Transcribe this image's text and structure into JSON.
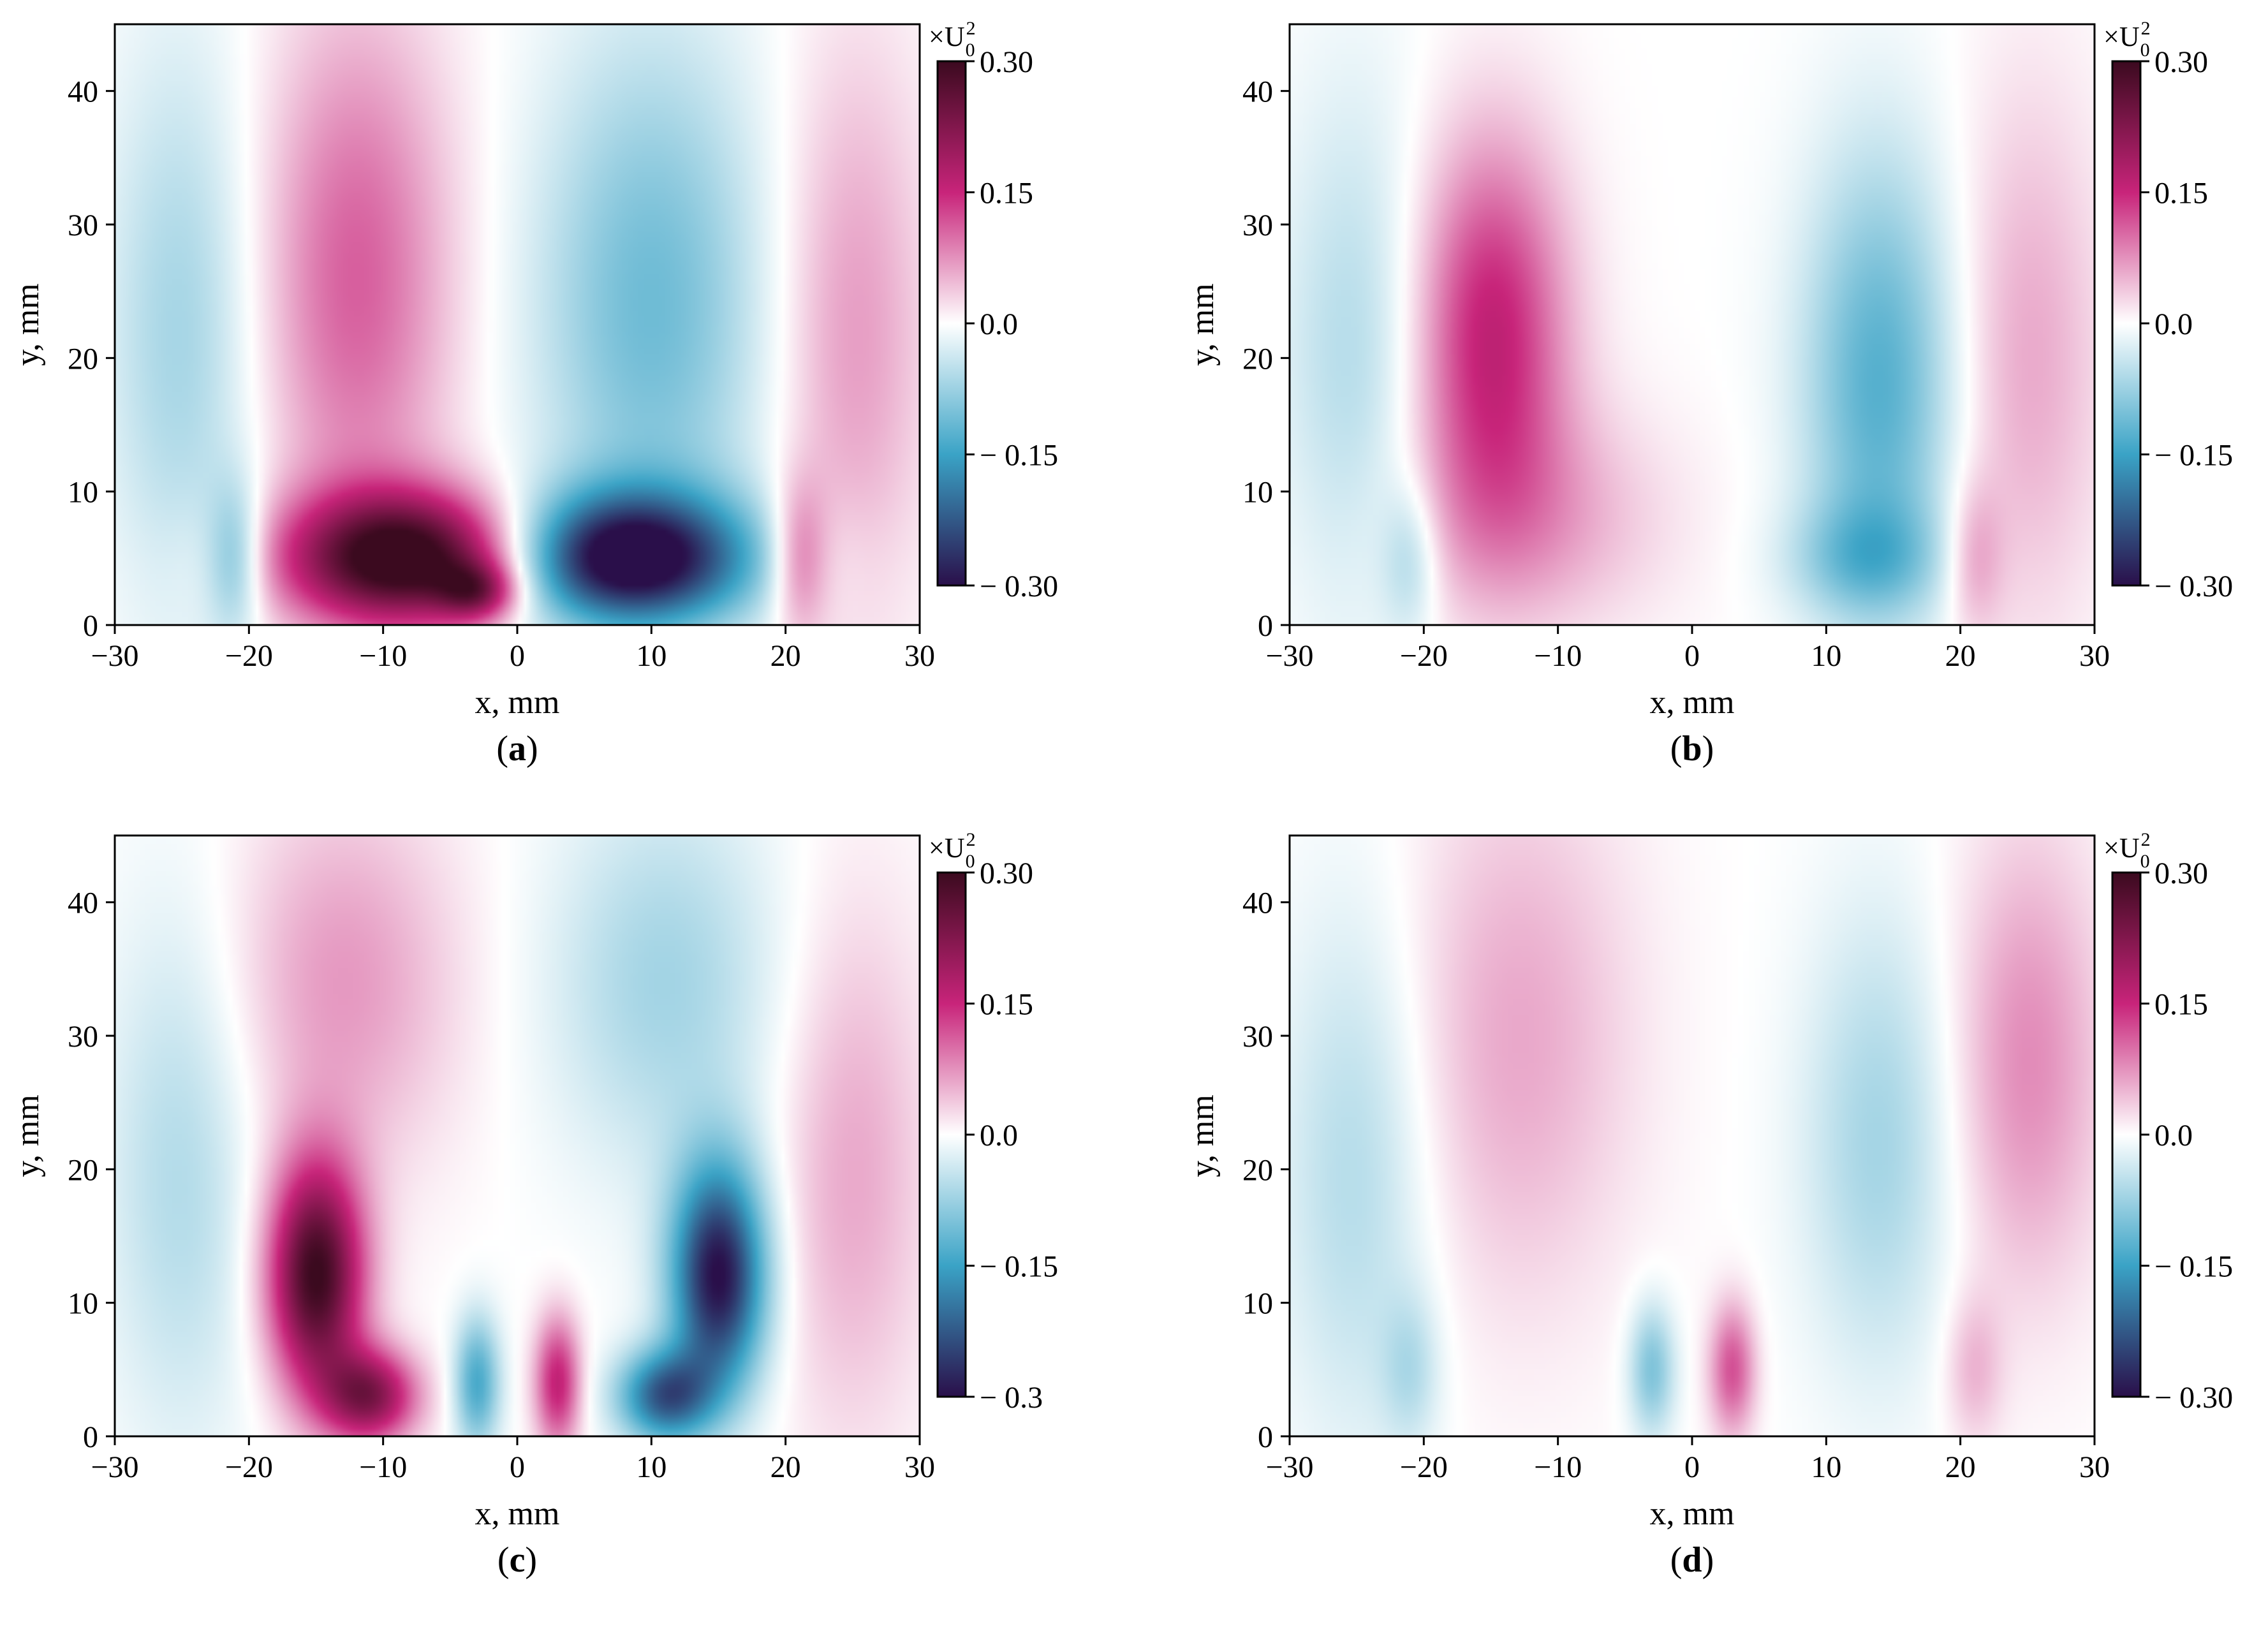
{
  "chart_data": [
    {
      "type": "heatmap",
      "panel_label": "a",
      "xlabel": "x, mm",
      "ylabel": "y, mm",
      "xlim": [
        -30,
        30
      ],
      "ylim": [
        0,
        45
      ],
      "x_ticks": [
        "−30",
        "−20",
        "−10",
        "0",
        "10",
        "20",
        "30"
      ],
      "y_ticks": [
        "0",
        "10",
        "20",
        "30",
        "40"
      ],
      "colorbar": {
        "unit": "×U",
        "unit_sup": "2",
        "unit_sub": "0",
        "range": [
          -0.3,
          0.3
        ],
        "tick_values": [
          0.3,
          0.15,
          0.0,
          -0.15,
          -0.3
        ],
        "tick_labels": [
          "0.30",
          "0.15",
          "0.0",
          "− 0.15",
          "− 0.30"
        ],
        "colors_top_to_bottom": [
          "#3b0a1f",
          "#c8247a",
          "#ffffff",
          "#3aa3c6",
          "#2a0f4a"
        ]
      },
      "blobs": [
        {
          "x": -8,
          "y": 5,
          "sx": 6.5,
          "sy": 3.5,
          "v": 0.33
        },
        {
          "x": -3,
          "y": 2.5,
          "sx": 2,
          "sy": 1.5,
          "v": 0.15
        },
        {
          "x": -12,
          "y": 26,
          "sx": 5,
          "sy": 14,
          "v": 0.11
        },
        {
          "x": 8,
          "y": 5,
          "sx": 6.5,
          "sy": 3.5,
          "v": -0.33
        },
        {
          "x": 10,
          "y": 24,
          "sx": 6,
          "sy": 14,
          "v": -0.11
        },
        {
          "x": -25,
          "y": 22,
          "sx": 4,
          "sy": 15,
          "v": -0.07
        },
        {
          "x": 25,
          "y": 22,
          "sx": 4,
          "sy": 15,
          "v": 0.07
        },
        {
          "x": -21,
          "y": 5,
          "sx": 1.5,
          "sy": 4,
          "v": -0.1
        },
        {
          "x": 21,
          "y": 5,
          "sx": 1.5,
          "sy": 4,
          "v": 0.1
        }
      ]
    },
    {
      "type": "heatmap",
      "panel_label": "b",
      "xlabel": "x, mm",
      "ylabel": "y, mm",
      "xlim": [
        -30,
        30
      ],
      "ylim": [
        0,
        45
      ],
      "x_ticks": [
        "−30",
        "−20",
        "−10",
        "0",
        "10",
        "20",
        "30"
      ],
      "y_ticks": [
        "0",
        "10",
        "20",
        "30",
        "40"
      ],
      "colorbar": {
        "unit": "×U",
        "unit_sup": "2",
        "unit_sub": "0",
        "range": [
          -0.3,
          0.3
        ],
        "tick_values": [
          0.3,
          0.15,
          0.0,
          -0.15,
          -0.3
        ],
        "tick_labels": [
          "0.30",
          "0.15",
          "0.0",
          "− 0.15",
          "− 0.30"
        ],
        "colors_top_to_bottom": [
          "#3b0a1f",
          "#c8247a",
          "#ffffff",
          "#3aa3c6",
          "#2a0f4a"
        ]
      },
      "blobs": [
        {
          "x": -15,
          "y": 22,
          "sx": 4,
          "sy": 10,
          "v": 0.16
        },
        {
          "x": -12,
          "y": 8,
          "sx": 7,
          "sy": 6,
          "v": 0.06
        },
        {
          "x": 14,
          "y": 18,
          "sx": 4,
          "sy": 12,
          "v": -0.13
        },
        {
          "x": 13,
          "y": 5,
          "sx": 4,
          "sy": 3,
          "v": -0.08
        },
        {
          "x": -25,
          "y": 20,
          "sx": 4,
          "sy": 14,
          "v": -0.06
        },
        {
          "x": 25,
          "y": 20,
          "sx": 4,
          "sy": 14,
          "v": 0.06
        },
        {
          "x": -21,
          "y": 5,
          "sx": 1.5,
          "sy": 4,
          "v": -0.06
        },
        {
          "x": 21,
          "y": 5,
          "sx": 1.5,
          "sy": 4,
          "v": 0.06
        }
      ]
    },
    {
      "type": "heatmap",
      "panel_label": "c",
      "xlabel": "x, mm",
      "ylabel": "y, mm",
      "xlim": [
        -30,
        30
      ],
      "ylim": [
        0,
        45
      ],
      "x_ticks": [
        "−30",
        "−20",
        "−10",
        "0",
        "10",
        "20",
        "30"
      ],
      "y_ticks": [
        "0",
        "10",
        "20",
        "30",
        "40"
      ],
      "colorbar": {
        "unit": "×U",
        "unit_sup": "2",
        "unit_sub": "0",
        "range": [
          -0.3,
          0.3
        ],
        "tick_values": [
          0.3,
          0.15,
          0.0,
          -0.15,
          -0.3
        ],
        "tick_labels": [
          "0.30",
          "0.15",
          "0.0",
          "− 0.15",
          "− 0.3"
        ],
        "colors_top_to_bottom": [
          "#3b0a1f",
          "#c8247a",
          "#ffffff",
          "#3aa3c6",
          "#2a0f4a"
        ]
      },
      "blobs": [
        {
          "x": -15,
          "y": 12,
          "sx": 2.5,
          "sy": 6,
          "v": 0.3
        },
        {
          "x": -11,
          "y": 3,
          "sx": 2.5,
          "sy": 2.5,
          "v": 0.22
        },
        {
          "x": 15,
          "y": 12,
          "sx": 2.5,
          "sy": 6,
          "v": -0.3
        },
        {
          "x": 11,
          "y": 3,
          "sx": 2.5,
          "sy": 2.5,
          "v": -0.22
        },
        {
          "x": -3,
          "y": 4,
          "sx": 1.2,
          "sy": 3.5,
          "v": -0.14
        },
        {
          "x": 3,
          "y": 4,
          "sx": 1.2,
          "sy": 3.5,
          "v": 0.16
        },
        {
          "x": -13,
          "y": 34,
          "sx": 6,
          "sy": 10,
          "v": 0.07
        },
        {
          "x": 11,
          "y": 34,
          "sx": 6,
          "sy": 10,
          "v": -0.07
        },
        {
          "x": -25,
          "y": 20,
          "sx": 4,
          "sy": 14,
          "v": -0.06
        },
        {
          "x": 25,
          "y": 20,
          "sx": 4,
          "sy": 14,
          "v": 0.06
        }
      ]
    },
    {
      "type": "heatmap",
      "panel_label": "d",
      "xlabel": "x, mm",
      "ylabel": "y, mm",
      "xlim": [
        -30,
        30
      ],
      "ylim": [
        0,
        45
      ],
      "x_ticks": [
        "−30",
        "−20",
        "−10",
        "0",
        "10",
        "20",
        "30"
      ],
      "y_ticks": [
        "0",
        "10",
        "20",
        "30",
        "40"
      ],
      "colorbar": {
        "unit": "×U",
        "unit_sup": "2",
        "unit_sub": "0",
        "range": [
          -0.3,
          0.3
        ],
        "tick_values": [
          0.3,
          0.15,
          0.0,
          -0.15,
          -0.3
        ],
        "tick_labels": [
          "0.30",
          "0.15",
          "0.0",
          "− 0.15",
          "− 0.30"
        ],
        "colors_top_to_bottom": [
          "#3b0a1f",
          "#c8247a",
          "#ffffff",
          "#3aa3c6",
          "#2a0f4a"
        ]
      },
      "blobs": [
        {
          "x": -13,
          "y": 30,
          "sx": 6,
          "sy": 14,
          "v": 0.06
        },
        {
          "x": 14,
          "y": 22,
          "sx": 4,
          "sy": 12,
          "v": -0.07
        },
        {
          "x": -3,
          "y": 5,
          "sx": 1.2,
          "sy": 3.5,
          "v": -0.1
        },
        {
          "x": 3,
          "y": 5,
          "sx": 1.2,
          "sy": 3.5,
          "v": 0.12
        },
        {
          "x": -25,
          "y": 20,
          "sx": 4,
          "sy": 14,
          "v": -0.06
        },
        {
          "x": 25,
          "y": 28,
          "sx": 4,
          "sy": 12,
          "v": 0.08
        },
        {
          "x": -21,
          "y": 5,
          "sx": 1.5,
          "sy": 4,
          "v": -0.05
        },
        {
          "x": 21,
          "y": 5,
          "sx": 1.5,
          "sy": 4,
          "v": 0.05
        }
      ]
    }
  ]
}
